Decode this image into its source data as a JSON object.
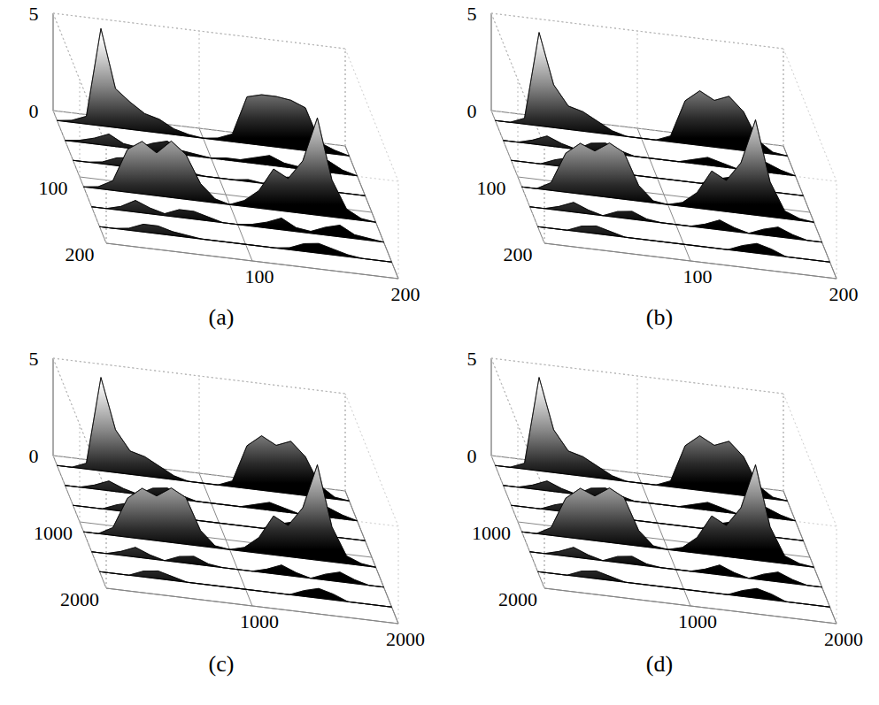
{
  "chart_data": [
    {
      "type": "waterfall3d",
      "title": "(a)",
      "grid": true,
      "x": [
        0,
        10,
        20,
        30,
        40,
        50,
        60,
        70,
        80,
        90,
        100,
        110,
        120,
        130,
        140,
        150,
        160,
        170,
        180,
        190,
        200
      ],
      "xlim": [
        0,
        200
      ],
      "ylim": [
        0,
        200
      ],
      "zlim": [
        0,
        5
      ],
      "xticks": [
        100,
        200
      ],
      "yticks": [
        100,
        200
      ],
      "zticks": [
        0,
        5
      ],
      "rows": [
        {
          "y": 15,
          "values": [
            0,
            0.1,
            0.4,
            5.0,
            2.0,
            1.4,
            0.9,
            0.7,
            0.3,
            0.1,
            0,
            0.1,
            0.4,
            2.4,
            2.6,
            2.6,
            2.5,
            2.2,
            0.5,
            0.2,
            0
          ]
        },
        {
          "y": 45,
          "values": [
            0,
            0.1,
            0.3,
            0.6,
            0.2,
            0.1,
            0.4,
            0.6,
            0.2,
            0.1,
            0,
            0.1,
            0.1,
            0.3,
            0.5,
            0.2,
            0.1,
            0.4,
            0.6,
            0.2,
            0
          ]
        },
        {
          "y": 75,
          "values": [
            0,
            0,
            0.1,
            0.4,
            0.5,
            0.2,
            0.1,
            0,
            0.1,
            0,
            0,
            0,
            0.1,
            0,
            0.4,
            0.5,
            0.2,
            0.1,
            0,
            0,
            0
          ]
        },
        {
          "y": 115,
          "values": [
            0,
            0.1,
            0.5,
            2.2,
            2.7,
            2.2,
            2.9,
            2.3,
            0.9,
            0.2,
            0,
            0.3,
            0.9,
            2.1,
            1.7,
            2.7,
            5.0,
            1.9,
            0.5,
            0.1,
            0
          ]
        },
        {
          "y": 145,
          "values": [
            0,
            0,
            0.2,
            0.6,
            0.3,
            0.1,
            0.4,
            0.4,
            0.2,
            0,
            0,
            0.1,
            0.3,
            0.6,
            0.2,
            0.1,
            0.4,
            0.6,
            0.2,
            0.1,
            0
          ]
        },
        {
          "y": 175,
          "values": [
            0,
            0,
            0.1,
            0.4,
            0.4,
            0.2,
            0.1,
            0,
            0,
            0,
            0,
            0,
            0,
            0.1,
            0.4,
            0.5,
            0.3,
            0.1,
            0,
            0,
            0
          ]
        }
      ]
    },
    {
      "type": "waterfall3d",
      "title": "(b)",
      "grid": true,
      "x": [
        0,
        10,
        20,
        30,
        40,
        50,
        60,
        70,
        80,
        90,
        100,
        110,
        120,
        130,
        140,
        150,
        160,
        170,
        180,
        190,
        200
      ],
      "xlim": [
        0,
        200
      ],
      "ylim": [
        0,
        200
      ],
      "zlim": [
        0,
        5
      ],
      "xticks": [
        100,
        200
      ],
      "yticks": [
        100,
        200
      ],
      "zticks": [
        0,
        5
      ],
      "rows": [
        {
          "y": 15,
          "values": [
            0,
            0,
            0.3,
            4.8,
            2.2,
            1.2,
            1.0,
            0.6,
            0.2,
            0,
            0,
            0,
            0.3,
            2.2,
            2.8,
            2.4,
            2.7,
            2.0,
            0.6,
            0.1,
            0
          ]
        },
        {
          "y": 45,
          "values": [
            0,
            0,
            0.2,
            0.5,
            0.2,
            0,
            0.4,
            0.5,
            0.2,
            0,
            0,
            0,
            0,
            0.2,
            0.4,
            0.2,
            0,
            0.3,
            0.5,
            0.2,
            0
          ]
        },
        {
          "y": 75,
          "values": [
            0,
            0,
            0,
            0.3,
            0.5,
            0.2,
            0,
            0,
            0,
            0,
            0,
            0,
            0,
            0,
            0.3,
            0.5,
            0.2,
            0,
            0,
            0,
            0
          ]
        },
        {
          "y": 115,
          "values": [
            0,
            0,
            0.4,
            2.0,
            2.6,
            2.3,
            2.8,
            2.4,
            0.8,
            0.1,
            0,
            0.2,
            0.8,
            2.0,
            1.6,
            2.6,
            4.9,
            1.8,
            0.4,
            0.1,
            0
          ]
        },
        {
          "y": 145,
          "values": [
            0,
            0,
            0.2,
            0.5,
            0.2,
            0,
            0.3,
            0.4,
            0.1,
            0,
            0,
            0,
            0.2,
            0.5,
            0.2,
            0,
            0.3,
            0.5,
            0.2,
            0,
            0
          ]
        },
        {
          "y": 175,
          "values": [
            0,
            0,
            0,
            0.3,
            0.4,
            0.2,
            0,
            0,
            0,
            0,
            0,
            0,
            0,
            0,
            0.3,
            0.5,
            0.3,
            0,
            0,
            0,
            0
          ]
        }
      ]
    },
    {
      "type": "waterfall3d",
      "title": "(c)",
      "grid": true,
      "x": [
        0,
        100,
        200,
        300,
        400,
        500,
        600,
        700,
        800,
        900,
        1000,
        1100,
        1200,
        1300,
        1400,
        1500,
        1600,
        1700,
        1800,
        1900,
        2000
      ],
      "xlim": [
        0,
        2000
      ],
      "ylim": [
        0,
        2000
      ],
      "zlim": [
        0,
        5
      ],
      "xticks": [
        1000,
        2000
      ],
      "yticks": [
        1000,
        2000
      ],
      "zticks": [
        0,
        5
      ],
      "rows": [
        {
          "y": 150,
          "values": [
            0,
            0,
            0.3,
            4.8,
            2.2,
            1.2,
            1.0,
            0.6,
            0.2,
            0,
            0,
            0,
            0.3,
            2.2,
            2.8,
            2.4,
            2.7,
            2.0,
            0.6,
            0.1,
            0
          ]
        },
        {
          "y": 450,
          "values": [
            0,
            0,
            0.2,
            0.5,
            0.2,
            0,
            0.4,
            0.5,
            0.2,
            0,
            0,
            0,
            0,
            0.2,
            0.4,
            0.2,
            0,
            0.3,
            0.5,
            0.2,
            0
          ]
        },
        {
          "y": 750,
          "values": [
            0,
            0,
            0,
            0.3,
            0.5,
            0.2,
            0,
            0,
            0,
            0,
            0,
            0,
            0,
            0,
            0.3,
            0.5,
            0.2,
            0,
            0,
            0,
            0
          ]
        },
        {
          "y": 1150,
          "values": [
            0,
            0,
            0.4,
            2.0,
            2.6,
            2.3,
            2.8,
            2.4,
            0.8,
            0.1,
            0,
            0.2,
            0.8,
            2.0,
            1.6,
            2.6,
            4.9,
            1.8,
            0.4,
            0.1,
            0
          ]
        },
        {
          "y": 1450,
          "values": [
            0,
            0,
            0.2,
            0.5,
            0.2,
            0,
            0.3,
            0.4,
            0.1,
            0,
            0,
            0,
            0.2,
            0.5,
            0.2,
            0,
            0.3,
            0.5,
            0.2,
            0,
            0
          ]
        },
        {
          "y": 1750,
          "values": [
            0,
            0,
            0,
            0.3,
            0.4,
            0.2,
            0,
            0,
            0,
            0,
            0,
            0,
            0,
            0,
            0.3,
            0.5,
            0.3,
            0,
            0,
            0,
            0
          ]
        }
      ]
    },
    {
      "type": "waterfall3d",
      "title": "(d)",
      "grid": true,
      "x": [
        0,
        100,
        200,
        300,
        400,
        500,
        600,
        700,
        800,
        900,
        1000,
        1100,
        1200,
        1300,
        1400,
        1500,
        1600,
        1700,
        1800,
        1900,
        2000
      ],
      "xlim": [
        0,
        2000
      ],
      "ylim": [
        0,
        2000
      ],
      "zlim": [
        0,
        5
      ],
      "xticks": [
        1000,
        2000
      ],
      "yticks": [
        1000,
        2000
      ],
      "zticks": [
        0,
        5
      ],
      "rows": [
        {
          "y": 150,
          "values": [
            0,
            0,
            0.3,
            4.8,
            2.2,
            1.2,
            1.0,
            0.6,
            0.2,
            0,
            0,
            0,
            0.3,
            2.2,
            2.8,
            2.4,
            2.7,
            2.0,
            0.6,
            0.1,
            0
          ]
        },
        {
          "y": 450,
          "values": [
            0,
            0,
            0.2,
            0.5,
            0.2,
            0,
            0.4,
            0.5,
            0.2,
            0,
            0,
            0,
            0,
            0.2,
            0.4,
            0.2,
            0,
            0.3,
            0.5,
            0.2,
            0
          ]
        },
        {
          "y": 750,
          "values": [
            0,
            0,
            0,
            0.3,
            0.5,
            0.2,
            0,
            0,
            0,
            0,
            0,
            0,
            0,
            0,
            0.3,
            0.5,
            0.2,
            0,
            0,
            0,
            0
          ]
        },
        {
          "y": 1150,
          "values": [
            0,
            0,
            0.4,
            2.0,
            2.6,
            2.3,
            2.8,
            2.4,
            0.8,
            0.1,
            0,
            0.2,
            0.8,
            2.0,
            1.6,
            2.6,
            4.9,
            1.8,
            0.4,
            0.1,
            0
          ]
        },
        {
          "y": 1450,
          "values": [
            0,
            0,
            0.2,
            0.5,
            0.2,
            0,
            0.3,
            0.4,
            0.1,
            0,
            0,
            0,
            0.2,
            0.5,
            0.2,
            0,
            0.3,
            0.5,
            0.2,
            0,
            0
          ]
        },
        {
          "y": 1750,
          "values": [
            0,
            0,
            0,
            0.3,
            0.4,
            0.2,
            0,
            0,
            0,
            0,
            0,
            0,
            0,
            0,
            0.3,
            0.5,
            0.3,
            0,
            0,
            0,
            0
          ]
        }
      ]
    }
  ]
}
